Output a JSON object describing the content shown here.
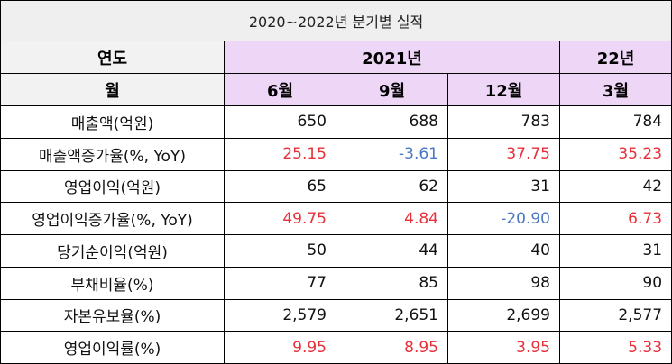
{
  "title": "2020~2022년 분기별 실적",
  "header": {
    "year_label": "연도",
    "month_label": "월",
    "year_2021": "2021년",
    "year_22": "22년",
    "months": [
      "6월",
      "9월",
      "12월",
      "3월"
    ]
  },
  "rows": [
    {
      "label": "매출액(억원)",
      "values": [
        "650",
        "688",
        "783",
        "784"
      ],
      "colors": [
        "#111111",
        "#111111",
        "#111111",
        "#111111"
      ]
    },
    {
      "label": "매출액증가율(%, YoY)",
      "values": [
        "25.15",
        "-3.61",
        "37.75",
        "35.23"
      ],
      "colors": [
        "#e8303a",
        "#4a78c2",
        "#e8303a",
        "#e8303a"
      ]
    },
    {
      "label": "영업이익(억원)",
      "values": [
        "65",
        "62",
        "31",
        "42"
      ],
      "colors": [
        "#111111",
        "#111111",
        "#111111",
        "#111111"
      ]
    },
    {
      "label": "영업이익증가율(%, YoY)",
      "values": [
        "49.75",
        "4.84",
        "-20.90",
        "6.73"
      ],
      "colors": [
        "#e8303a",
        "#e8303a",
        "#4a78c2",
        "#e8303a"
      ]
    },
    {
      "label": "당기순이익(억원)",
      "values": [
        "50",
        "44",
        "40",
        "31"
      ],
      "colors": [
        "#111111",
        "#111111",
        "#111111",
        "#111111"
      ]
    },
    {
      "label": "부채비율(%)",
      "values": [
        "77",
        "85",
        "98",
        "90"
      ],
      "colors": [
        "#111111",
        "#111111",
        "#111111",
        "#111111"
      ]
    },
    {
      "label": "자본유보율(%)",
      "values": [
        "2,579",
        "2,651",
        "2,699",
        "2,577"
      ],
      "colors": [
        "#111111",
        "#111111",
        "#111111",
        "#111111"
      ]
    },
    {
      "label": "영업이익률(%)",
      "values": [
        "9.95",
        "8.95",
        "3.95",
        "5.33"
      ],
      "colors": [
        "#e8303a",
        "#e8303a",
        "#e8303a",
        "#e8303a"
      ]
    }
  ]
}
